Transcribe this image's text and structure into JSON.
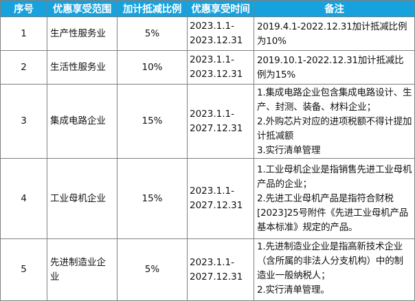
{
  "table": {
    "headers": [
      "序号",
      "优惠享受范围",
      "加计抵减比例",
      "优惠享受时间",
      "备注"
    ],
    "rows": [
      {
        "index": "1",
        "scope": "生产性服务业",
        "ratio": "5%",
        "period_start": "2023.1.1-",
        "period_end": "2023.12.31",
        "notes": [
          "2019.4.1-2022.12.31加计抵减比例为10%"
        ]
      },
      {
        "index": "2",
        "scope": "生活性服务业",
        "ratio": "10%",
        "period_start": "2023.1.1-",
        "period_end": "2023.12.31",
        "notes": [
          "2019.10.1-2022.12.31加计抵减比例为15%"
        ]
      },
      {
        "index": "3",
        "scope": "集成电路企业",
        "ratio": "15%",
        "period_start": "2023.1.1-",
        "period_end": "2027.12.31",
        "notes": [
          "1.集成电路企业包含集成电路设计、生产、封测、装备、材料企业；",
          "2.外购芯片对应的进项税额不得计提加计抵减额",
          "3.实行清单管理"
        ]
      },
      {
        "index": "4",
        "scope": "工业母机企业",
        "ratio": "15%",
        "period_start": "2023.1.1-",
        "period_end": "2027.12.31",
        "notes": [
          "1.工业母机企业是指销售先进工业母机产品的企业；",
          "2.先进工业母机产品是指符合财税[2023]25号附件《先进工业母机产品基本标准》规定的产品。"
        ]
      },
      {
        "index": "5",
        "scope_line1": "先进制造业企",
        "scope_line2": "业",
        "ratio": "5%",
        "period_start": "2023.1.1-",
        "period_end": "2027.12.31",
        "notes": [
          "1.先进制造业企业是指高新技术企业（含所属的非法人分支机构）中的制造业一般纳税人；",
          "2.实行清单管理。"
        ]
      }
    ]
  },
  "colors": {
    "header_bg": "#17a2de",
    "header_text": "#ffffff",
    "border": "#7f7f7f"
  }
}
